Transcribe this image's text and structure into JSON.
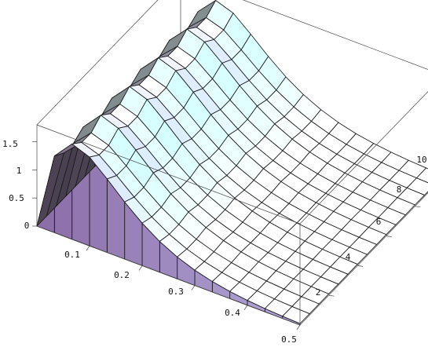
{
  "chart_data": {
    "type": "surface3d",
    "title": "",
    "xlabel": "",
    "ylabel": "",
    "zlabel": "",
    "x_range": [
      0,
      0.5
    ],
    "y_range": [
      0,
      10
    ],
    "z_range": [
      0,
      1.8
    ],
    "grid_cells": [
      15,
      15
    ],
    "x_ticks": [
      "0.1",
      "0.2",
      "0.3",
      "0.4",
      "0.5"
    ],
    "y_ticks": [
      "2",
      "4",
      "6",
      "8",
      "10"
    ],
    "z_ticks": [
      "0",
      "0.5",
      "1",
      "1.5"
    ],
    "x_tick_values": [
      0.1,
      0.2,
      0.3,
      0.4,
      0.5
    ],
    "y_tick_values": [
      2,
      4,
      6,
      8,
      10
    ],
    "z_tick_values": [
      0,
      0.5,
      1,
      1.5
    ],
    "peak_ridge": {
      "x_value": 0.07,
      "z_at_y0": 1.6,
      "z_at_y10": 1.52,
      "oscillation_amplitude": 0.06,
      "bumps": 5,
      "decay_with_x": "exponential, near 0 by x = 0.3"
    },
    "colors": {
      "shaded_low": "#a9b9ef",
      "shaded_mid": "#c8bad8",
      "shaded_side": "#8c6ea8",
      "highlight": "#c6f0d9",
      "mesh": "#1a1a1a",
      "box": "#444444"
    }
  }
}
